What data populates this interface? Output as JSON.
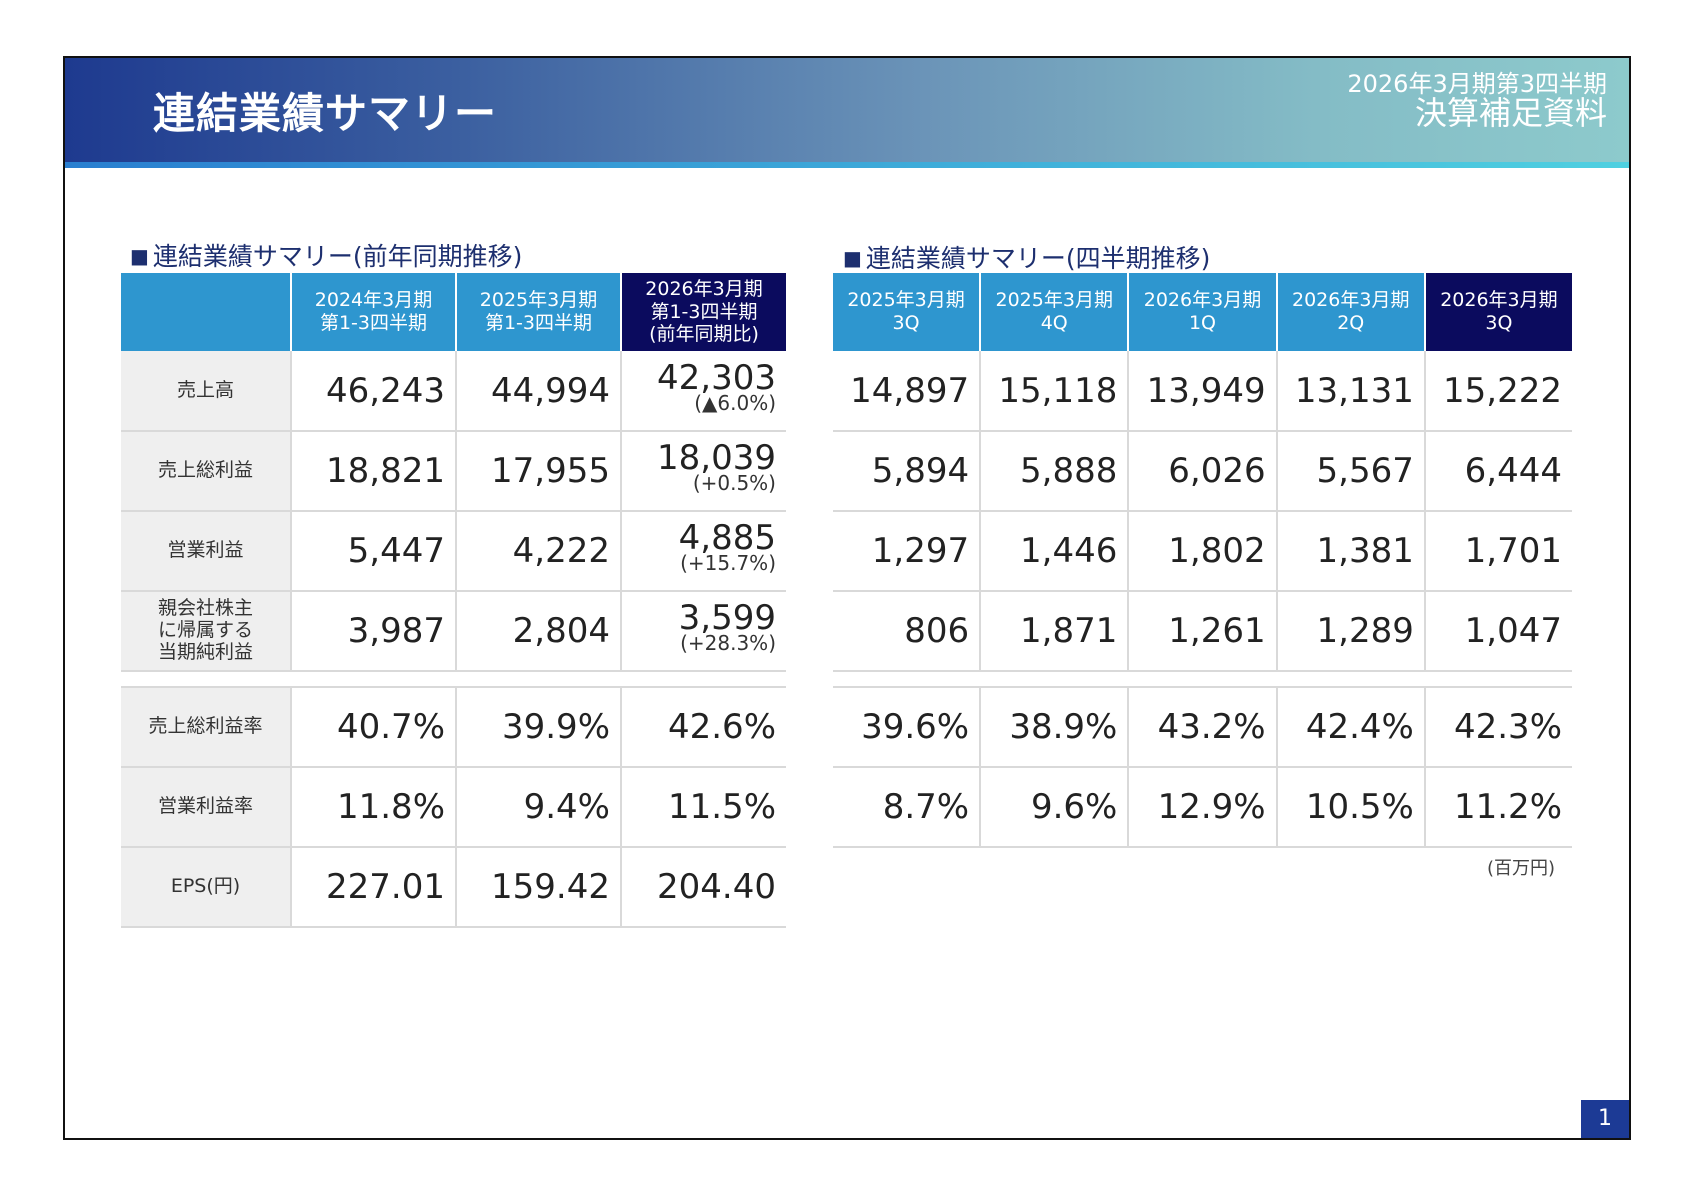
{
  "header": {
    "title": "連結業績サマリー",
    "sub1": "2026年3月期第3四半期",
    "sub2": "決算補足資料"
  },
  "left": {
    "section": "連結業績サマリー(前年同期推移)",
    "columns": [
      "2024年3月期\n第1-3四半期",
      "2025年3月期\n第1-3四半期",
      "2026年3月期\n第1-3四半期\n(前年同期比)"
    ],
    "rows": [
      {
        "label": "売上高",
        "v": [
          "46,243",
          "44,994",
          "42,303"
        ],
        "chg": "(▲6.0%)"
      },
      {
        "label": "売上総利益",
        "v": [
          "18,821",
          "17,955",
          "18,039"
        ],
        "chg": "(+0.5%)"
      },
      {
        "label": "営業利益",
        "v": [
          "5,447",
          "4,222",
          "4,885"
        ],
        "chg": "(+15.7%)"
      },
      {
        "label": "親会社株主\nに帰属する\n当期純利益",
        "v": [
          "3,987",
          "2,804",
          "3,599"
        ],
        "chg": "(+28.3%)"
      },
      {
        "label": "売上総利益率",
        "v": [
          "40.7%",
          "39.9%",
          "42.6%"
        ]
      },
      {
        "label": "営業利益率",
        "v": [
          "11.8%",
          "9.4%",
          "11.5%"
        ]
      },
      {
        "label": "EPS(円)",
        "v": [
          "227.01",
          "159.42",
          "204.40"
        ]
      }
    ]
  },
  "right": {
    "section": "連結業績サマリー(四半期推移)",
    "columns": [
      "2025年3月期\n3Q",
      "2025年3月期\n4Q",
      "2026年3月期\n1Q",
      "2026年3月期\n2Q",
      "2026年3月期\n3Q"
    ],
    "rows": [
      [
        "14,897",
        "15,118",
        "13,949",
        "13,131",
        "15,222"
      ],
      [
        "5,894",
        "5,888",
        "6,026",
        "5,567",
        "6,444"
      ],
      [
        "1,297",
        "1,446",
        "1,802",
        "1,381",
        "1,701"
      ],
      [
        "806",
        "1,871",
        "1,261",
        "1,289",
        "1,047"
      ],
      [
        "39.6%",
        "38.9%",
        "43.2%",
        "42.4%",
        "42.3%"
      ],
      [
        "8.7%",
        "9.6%",
        "12.9%",
        "10.5%",
        "11.2%"
      ]
    ],
    "unit": "(百万円)"
  },
  "page_number": "1",
  "colors": {
    "header_blue": "#2e96cf",
    "header_dark": "#0b0b5e",
    "band": "#1e3a8f"
  }
}
